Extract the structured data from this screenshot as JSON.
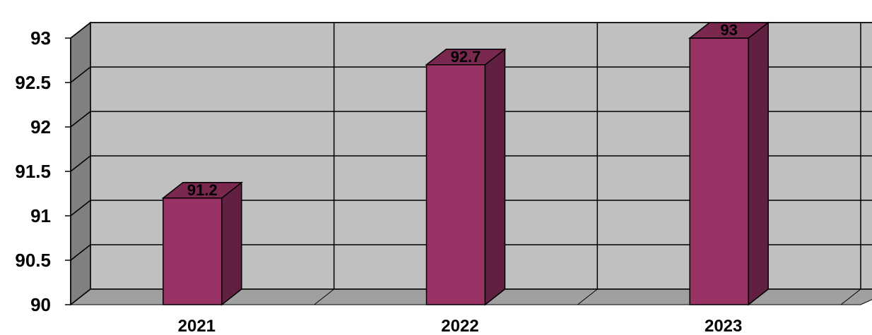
{
  "chart_data": {
    "type": "bar",
    "title": "",
    "xlabel": "",
    "ylabel": "",
    "categories": [
      "2021",
      "2022",
      "2023"
    ],
    "values": [
      91.2,
      92.7,
      93
    ],
    "data_labels": [
      "91.2",
      "92.7",
      "93"
    ],
    "ylim": [
      90,
      93
    ],
    "yticks": [
      90,
      90.5,
      91,
      91.5,
      92,
      92.5,
      93
    ],
    "ytick_labels": [
      "90",
      "90.5",
      "91",
      "91.5",
      "92",
      "92.5",
      "93"
    ],
    "grid": true,
    "legend": "none",
    "style": "3d",
    "colors": {
      "bar_front": "#993366",
      "bar_side": "#611F41",
      "bar_top": "#7A2850",
      "back_wall": "#C0C0C0",
      "side_wall": "#808080",
      "floor": "#A0A0A0"
    }
  }
}
